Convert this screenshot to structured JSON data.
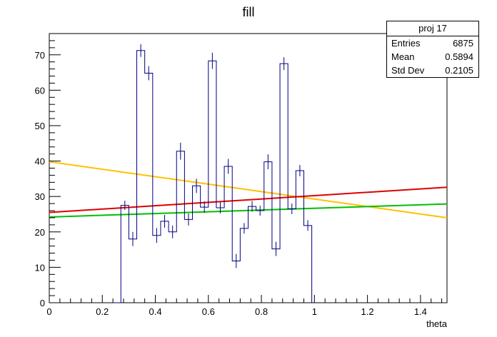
{
  "chart_data": {
    "type": "histogram",
    "title": "fill",
    "xlabel": "theta",
    "ylabel": "",
    "xlim": [
      0,
      1.5
    ],
    "ylim": [
      0,
      76
    ],
    "x_ticks": [
      "0",
      "0.2",
      "0.4",
      "0.6",
      "0.8",
      "1",
      "1.2",
      "1.4"
    ],
    "x_tick_values": [
      0,
      0.2,
      0.4,
      0.6,
      0.8,
      1.0,
      1.2,
      1.4
    ],
    "y_ticks": [
      "0",
      "10",
      "20",
      "30",
      "40",
      "50",
      "60",
      "70"
    ],
    "y_tick_values": [
      0,
      10,
      20,
      30,
      40,
      50,
      60,
      70
    ],
    "bin_width": 0.03,
    "bins": [
      {
        "x": 0.24,
        "y": 0,
        "err": 0
      },
      {
        "x": 0.27,
        "y": 27.5,
        "err": 1.3
      },
      {
        "x": 0.3,
        "y": 18,
        "err": 2.0
      },
      {
        "x": 0.33,
        "y": 71.2,
        "err": 1.8
      },
      {
        "x": 0.36,
        "y": 64.8,
        "err": 2.0
      },
      {
        "x": 0.39,
        "y": 19,
        "err": 2.1
      },
      {
        "x": 0.42,
        "y": 23,
        "err": 1.8
      },
      {
        "x": 0.45,
        "y": 20,
        "err": 1.8
      },
      {
        "x": 0.48,
        "y": 42.8,
        "err": 2.4
      },
      {
        "x": 0.51,
        "y": 23.5,
        "err": 1.7
      },
      {
        "x": 0.54,
        "y": 33,
        "err": 2.0
      },
      {
        "x": 0.57,
        "y": 27,
        "err": 1.6
      },
      {
        "x": 0.6,
        "y": 68.3,
        "err": 2.3
      },
      {
        "x": 0.63,
        "y": 26.8,
        "err": 1.6
      },
      {
        "x": 0.66,
        "y": 38.5,
        "err": 2.1
      },
      {
        "x": 0.69,
        "y": 11.8,
        "err": 2.0
      },
      {
        "x": 0.72,
        "y": 21,
        "err": 1.5
      },
      {
        "x": 0.75,
        "y": 27.2,
        "err": 1.5
      },
      {
        "x": 0.78,
        "y": 26,
        "err": 1.4
      },
      {
        "x": 0.81,
        "y": 39.8,
        "err": 2.1
      },
      {
        "x": 0.84,
        "y": 15.2,
        "err": 2.0
      },
      {
        "x": 0.87,
        "y": 67.5,
        "err": 1.8
      },
      {
        "x": 0.9,
        "y": 26.5,
        "err": 1.5
      },
      {
        "x": 0.93,
        "y": 37.3,
        "err": 1.6
      },
      {
        "x": 0.96,
        "y": 21.8,
        "err": 1.5
      }
    ],
    "histogram_color": "#000080",
    "lines": [
      {
        "color": "#ffc000",
        "x": [
          0,
          1.5
        ],
        "y": [
          39.8,
          24.0
        ]
      },
      {
        "color": "#e00000",
        "x": [
          0,
          1.5
        ],
        "y": [
          25.5,
          32.6
        ]
      },
      {
        "color": "#00c000",
        "x": [
          0,
          1.5
        ],
        "y": [
          24.2,
          27.9
        ]
      }
    ],
    "stats_box": {
      "title": "proj 17",
      "rows": [
        {
          "label": "Entries",
          "value": "6875"
        },
        {
          "label": "Mean",
          "value": "0.5894"
        },
        {
          "label": "Std Dev",
          "value": "0.2105"
        }
      ]
    }
  }
}
